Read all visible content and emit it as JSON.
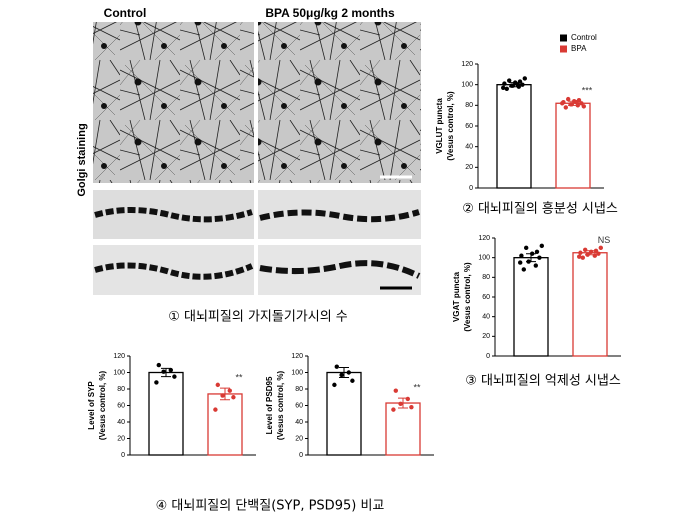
{
  "image_panel": {
    "columns": [
      "Control",
      "BPA 50μg/kg 2 months"
    ],
    "row_label": "Golgi staining",
    "caption": "① 대뇌피질의 가지돌기가시의 수"
  },
  "legend": [
    {
      "name": "Control",
      "color": "#000000"
    },
    {
      "name": "BPA",
      "color": "#d93a34"
    }
  ],
  "chart_data": [
    {
      "type": "bar",
      "caption": "② 대뇌피질의 흥분성 시냅스",
      "ylabel": [
        "VGLUT puncta",
        "(Vesus control, %)"
      ],
      "values": [
        100,
        82
      ],
      "errors": [
        2,
        2
      ],
      "points": [
        [
          96,
          98,
          99,
          100,
          101,
          102,
          103,
          104,
          106,
          97,
          100,
          99
        ],
        [
          78,
          80,
          81,
          82,
          83,
          84,
          85,
          86,
          79,
          82,
          83,
          81
        ]
      ],
      "annotations": [
        null,
        "***"
      ],
      "ylim": [
        0,
        120
      ],
      "yticks": [
        0,
        20,
        40,
        60,
        80,
        100,
        120
      ]
    },
    {
      "type": "bar",
      "caption": "③ 대뇌피질의 억제성 시냅스",
      "ylabel": [
        "VGAT puncta",
        "(Vesus control, %)"
      ],
      "values": [
        100,
        105
      ],
      "errors": [
        4,
        2
      ],
      "points": [
        [
          88,
          92,
          96,
          100,
          102,
          104,
          106,
          110,
          112,
          95
        ],
        [
          100,
          102,
          103,
          104,
          105,
          106,
          107,
          108,
          110,
          101
        ]
      ],
      "annotations": [
        null,
        "NS"
      ],
      "ylim": [
        0,
        120
      ],
      "yticks": [
        0,
        20,
        40,
        60,
        80,
        100,
        120
      ]
    },
    {
      "type": "bar",
      "caption": "④ 대뇌피질의 단백질(SYP, PSD95) 비교",
      "ylabel": [
        "Level of SYP",
        "(Vesus control, %)"
      ],
      "values": [
        100,
        74
      ],
      "errors": [
        5,
        7
      ],
      "points": [
        [
          109,
          103,
          101,
          95,
          88
        ],
        [
          85,
          78,
          72,
          70,
          55
        ]
      ],
      "annotations": [
        null,
        "**"
      ],
      "ylim": [
        0,
        120
      ],
      "yticks": [
        0,
        20,
        40,
        60,
        80,
        100,
        120
      ]
    },
    {
      "type": "bar",
      "ylabel": [
        "Level of PSD95",
        "(Vesus control, %)"
      ],
      "values": [
        100,
        63
      ],
      "errors": [
        6,
        6
      ],
      "points": [
        [
          107,
          100,
          97,
          90,
          85
        ],
        [
          78,
          68,
          62,
          58,
          55
        ]
      ],
      "annotations": [
        null,
        "**"
      ],
      "ylim": [
        0,
        120
      ],
      "yticks": [
        0,
        20,
        40,
        60,
        80,
        100,
        120
      ]
    }
  ]
}
